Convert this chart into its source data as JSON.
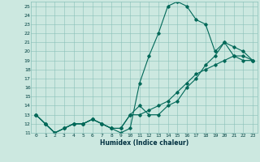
{
  "xlabel": "Humidex (Indice chaleur)",
  "bg_color": "#cce8e0",
  "grid_color": "#88c0b8",
  "line_color": "#006858",
  "xlim": [
    -0.5,
    23.5
  ],
  "ylim": [
    11,
    25.5
  ],
  "xticks": [
    0,
    1,
    2,
    3,
    4,
    5,
    6,
    7,
    8,
    9,
    10,
    11,
    12,
    13,
    14,
    15,
    16,
    17,
    18,
    19,
    20,
    21,
    22,
    23
  ],
  "yticks": [
    11,
    12,
    13,
    14,
    15,
    16,
    17,
    18,
    19,
    20,
    21,
    22,
    23,
    24,
    25
  ],
  "line1_x": [
    0,
    1,
    2,
    3,
    4,
    5,
    6,
    7,
    8,
    9,
    10,
    11,
    12,
    13,
    14,
    15,
    16,
    17,
    18,
    19,
    20,
    21,
    22,
    23
  ],
  "line1_y": [
    13,
    12,
    11,
    11.5,
    12,
    12,
    12.5,
    12,
    11.5,
    11,
    11.5,
    16.5,
    19.5,
    22,
    25,
    25.5,
    25,
    23.5,
    23,
    20,
    21,
    19.5,
    19,
    19
  ],
  "line2_x": [
    0,
    1,
    2,
    3,
    4,
    5,
    6,
    7,
    8,
    9,
    10,
    11,
    12,
    13,
    14,
    15,
    16,
    17,
    18,
    19,
    20,
    21,
    22,
    23
  ],
  "line2_y": [
    13,
    12,
    11,
    11.5,
    12,
    12,
    12.5,
    12,
    11.5,
    11.5,
    13,
    14,
    13,
    13,
    14,
    14.5,
    16,
    17,
    18.5,
    19.5,
    21,
    20.5,
    20,
    19
  ],
  "line3_x": [
    0,
    1,
    2,
    3,
    4,
    5,
    6,
    7,
    8,
    9,
    10,
    11,
    12,
    13,
    14,
    15,
    16,
    17,
    18,
    19,
    20,
    21,
    22,
    23
  ],
  "line3_y": [
    13,
    12,
    11,
    11.5,
    12,
    12,
    12.5,
    12,
    11.5,
    11.5,
    13,
    13,
    13.5,
    14,
    14.5,
    15.5,
    16.5,
    17.5,
    18,
    18.5,
    19,
    19.5,
    19.5,
    19
  ]
}
